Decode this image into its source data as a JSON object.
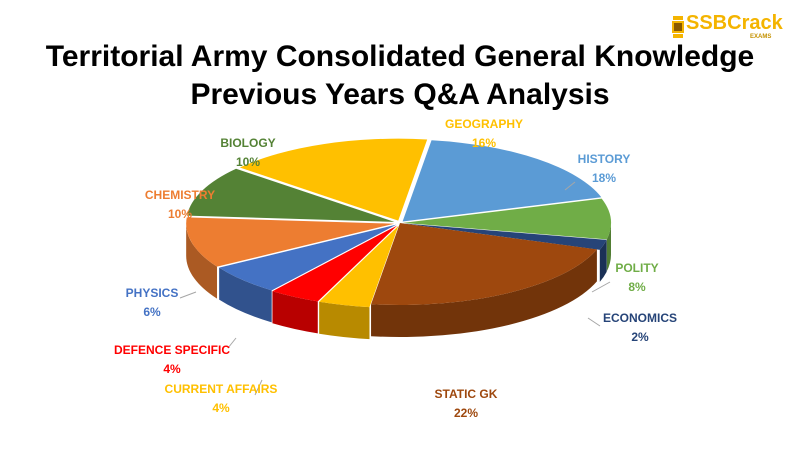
{
  "title_lines": [
    "Territorial Army Consolidated General Knowledge",
    "Previous Years Q&A Analysis"
  ],
  "logo": {
    "text": "SSBCrack",
    "sub": "EXAMS",
    "color": "#f4b400"
  },
  "chart_data": {
    "type": "pie",
    "title": "Territorial Army Consolidated General Knowledge Previous Years Q&A Analysis",
    "style": "3d-exploded",
    "slices": [
      {
        "label": "HISTORY",
        "value": 18,
        "display": "18%",
        "color": "#5b9bd5"
      },
      {
        "label": "POLITY",
        "value": 8,
        "display": "8%",
        "color": "#70ad47"
      },
      {
        "label": "ECONOMICS",
        "value": 2,
        "display": "2%",
        "color": "#264478"
      },
      {
        "label": "STATIC GK",
        "value": 22,
        "display": "22%",
        "color": "#9e480e"
      },
      {
        "label": "CURRENT AFFAIRS",
        "value": 4,
        "display": "4%",
        "color": "#ffc000"
      },
      {
        "label": "DEFENCE SPECIFIC",
        "value": 4,
        "display": "4%",
        "color": "#ff0000"
      },
      {
        "label": "PHYSICS",
        "value": 6,
        "display": "6%",
        "color": "#4472c4"
      },
      {
        "label": "CHEMISTRY",
        "value": 10,
        "display": "10%",
        "color": "#ed7d31"
      },
      {
        "label": "BIOLOGY",
        "value": 10,
        "display": "10%",
        "color": "#548235"
      },
      {
        "label": "GEOGRAPHY",
        "value": 16,
        "display": "16%",
        "color": "#ffc000"
      }
    ],
    "label_colors": {
      "HISTORY": "#5b9bd5",
      "POLITY": "#70ad47",
      "ECONOMICS": "#264478",
      "STATIC GK": "#9e480e",
      "CURRENT AFFAIRS": "#ffc000",
      "DEFENCE SPECIFIC": "#ff0000",
      "PHYSICS": "#4472c4",
      "CHEMISTRY": "#ed7d31",
      "BIOLOGY": "#548235",
      "GEOGRAPHY": "#ffc000"
    }
  }
}
